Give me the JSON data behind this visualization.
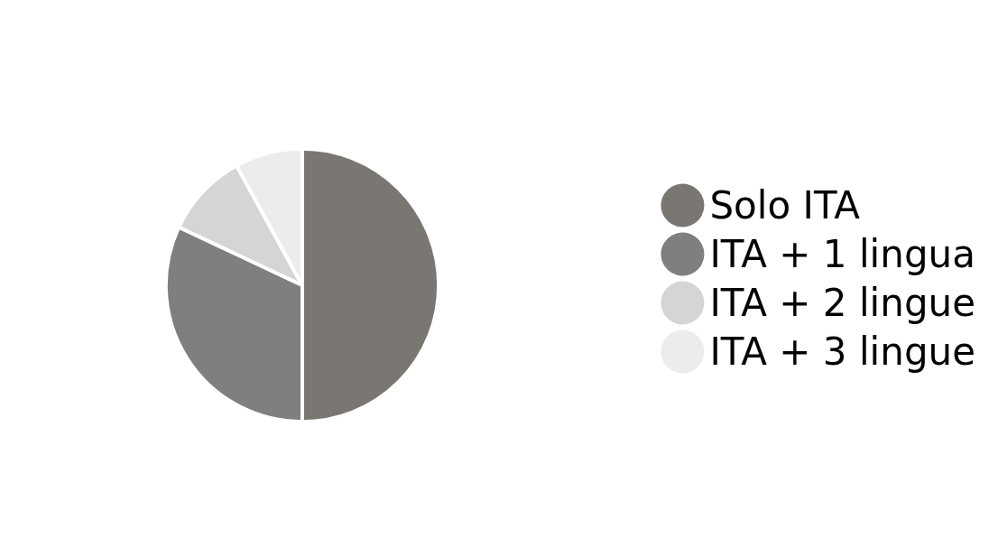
{
  "chart_data": {
    "type": "pie",
    "categories": [
      "Solo ITA",
      "ITA + 1 lingua",
      "ITA + 2 lingue",
      "ITA + 3 lingue"
    ],
    "values": [
      50,
      32,
      10,
      8
    ],
    "colors": [
      "#7a7773",
      "#7f7f7f",
      "#d5d5d5",
      "#ececec"
    ],
    "legend": "right"
  }
}
